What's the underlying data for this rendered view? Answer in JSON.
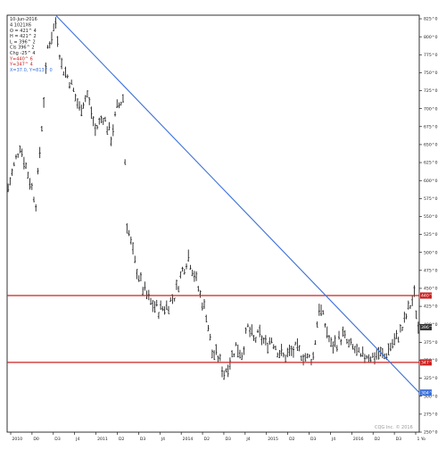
{
  "colors": {
    "background": "#ffffff",
    "frame": "#000000",
    "price_bars": "#222222",
    "trendline": "#3a6fd8",
    "resistance": "#cc2222",
    "support": "#cc2222",
    "current_badge": "#333333"
  },
  "legend": {
    "date": "10-Jun-2016",
    "lines": [
      {
        "text": "4 1021X6",
        "color": "#222222"
      },
      {
        "text": "O = 421^ 4",
        "color": "#222222"
      },
      {
        "text": "H = 421^ 2",
        "color": "#222222"
      },
      {
        "text": "L = 396^ 2",
        "color": "#222222"
      },
      {
        "text": "Cls 396^ 2",
        "color": "#222222"
      },
      {
        "text": "Chg -25^ 4",
        "color": "#222222"
      },
      {
        "text": "Y=440^ 6",
        "color": "#cc2222"
      },
      {
        "text": "Y=347^ 4",
        "color": "#cc2222"
      },
      {
        "text": "X=37.0, Y=813^ 0",
        "color": "#3a6fd8"
      }
    ]
  },
  "watermark": "CQG Inc. © 2016",
  "chart_data": {
    "type": "bar",
    "subtype": "ohlc-price-chart",
    "x_axis_labels": [
      "2010",
      "D0",
      "D3",
      "J4",
      "2011",
      "D2",
      "D3",
      "J4",
      "2014",
      "D2",
      "D3",
      "J4",
      "2015",
      "D2",
      "D3",
      "J4",
      "2016",
      "D2",
      "D3",
      "1 Yo"
    ],
    "y_axis_labels": [
      "825^0",
      "800^0",
      "775^0",
      "750^0",
      "725^0",
      "700^0",
      "675^0",
      "650^0",
      "625^0",
      "600^0",
      "575^0",
      "550^0",
      "525^0",
      "500^0",
      "475^0",
      "450^0",
      "425^0",
      "400^0",
      "375^0",
      "350^0",
      "325^0",
      "300^0",
      "275^0",
      "250^0"
    ],
    "ylim": [
      250,
      830
    ],
    "y_unit_note": "price in cents/bu",
    "close_path": [
      {
        "bar": 0,
        "price": 590
      },
      {
        "bar": 6,
        "price": 650
      },
      {
        "bar": 10,
        "price": 610
      },
      {
        "bar": 14,
        "price": 570
      },
      {
        "bar": 16,
        "price": 640
      },
      {
        "bar": 20,
        "price": 785
      },
      {
        "bar": 24,
        "price": 820
      },
      {
        "bar": 27,
        "price": 760
      },
      {
        "bar": 31,
        "price": 740
      },
      {
        "bar": 36,
        "price": 700
      },
      {
        "bar": 40,
        "price": 720
      },
      {
        "bar": 44,
        "price": 670
      },
      {
        "bar": 48,
        "price": 690
      },
      {
        "bar": 52,
        "price": 660
      },
      {
        "bar": 55,
        "price": 700
      },
      {
        "bar": 58,
        "price": 715
      },
      {
        "bar": 60,
        "price": 540
      },
      {
        "bar": 64,
        "price": 485
      },
      {
        "bar": 68,
        "price": 450
      },
      {
        "bar": 72,
        "price": 430
      },
      {
        "bar": 76,
        "price": 420
      },
      {
        "bar": 80,
        "price": 425
      },
      {
        "bar": 84,
        "price": 440
      },
      {
        "bar": 88,
        "price": 475
      },
      {
        "bar": 91,
        "price": 495
      },
      {
        "bar": 94,
        "price": 470
      },
      {
        "bar": 97,
        "price": 440
      },
      {
        "bar": 100,
        "price": 415
      },
      {
        "bar": 103,
        "price": 360
      },
      {
        "bar": 106,
        "price": 355
      },
      {
        "bar": 109,
        "price": 332
      },
      {
        "bar": 112,
        "price": 350
      },
      {
        "bar": 115,
        "price": 370
      },
      {
        "bar": 118,
        "price": 360
      },
      {
        "bar": 121,
        "price": 395
      },
      {
        "bar": 124,
        "price": 378
      },
      {
        "bar": 127,
        "price": 385
      },
      {
        "bar": 130,
        "price": 372
      },
      {
        "bar": 133,
        "price": 380
      },
      {
        "bar": 136,
        "price": 365
      },
      {
        "bar": 139,
        "price": 355
      },
      {
        "bar": 142,
        "price": 360
      },
      {
        "bar": 145,
        "price": 365
      },
      {
        "bar": 148,
        "price": 360
      },
      {
        "bar": 151,
        "price": 352
      },
      {
        "bar": 154,
        "price": 355
      },
      {
        "bar": 157,
        "price": 425
      },
      {
        "bar": 160,
        "price": 400
      },
      {
        "bar": 163,
        "price": 370
      },
      {
        "bar": 166,
        "price": 375
      },
      {
        "bar": 169,
        "price": 385
      },
      {
        "bar": 172,
        "price": 370
      },
      {
        "bar": 175,
        "price": 365
      },
      {
        "bar": 178,
        "price": 352
      },
      {
        "bar": 181,
        "price": 358
      },
      {
        "bar": 184,
        "price": 355
      },
      {
        "bar": 187,
        "price": 360
      },
      {
        "bar": 190,
        "price": 355
      },
      {
        "bar": 193,
        "price": 370
      },
      {
        "bar": 196,
        "price": 380
      },
      {
        "bar": 199,
        "price": 395
      },
      {
        "bar": 202,
        "price": 420
      },
      {
        "bar": 205,
        "price": 440
      },
      {
        "bar": 207,
        "price": 396
      }
    ],
    "bar_count": 208,
    "bar_range": 8,
    "lines": [
      {
        "name": "resistance",
        "value": 440,
        "label": "440^6",
        "color": "#cc2222"
      },
      {
        "name": "support",
        "value": 347,
        "label": "347^4",
        "color": "#cc2222"
      },
      {
        "name": "trendline",
        "from": {
          "bar": 24,
          "price": 830
        },
        "to": {
          "bar": 208,
          "price": 305
        },
        "label": "304^0",
        "color": "#3a6fd8"
      }
    ],
    "last_price_label": "396^2"
  }
}
